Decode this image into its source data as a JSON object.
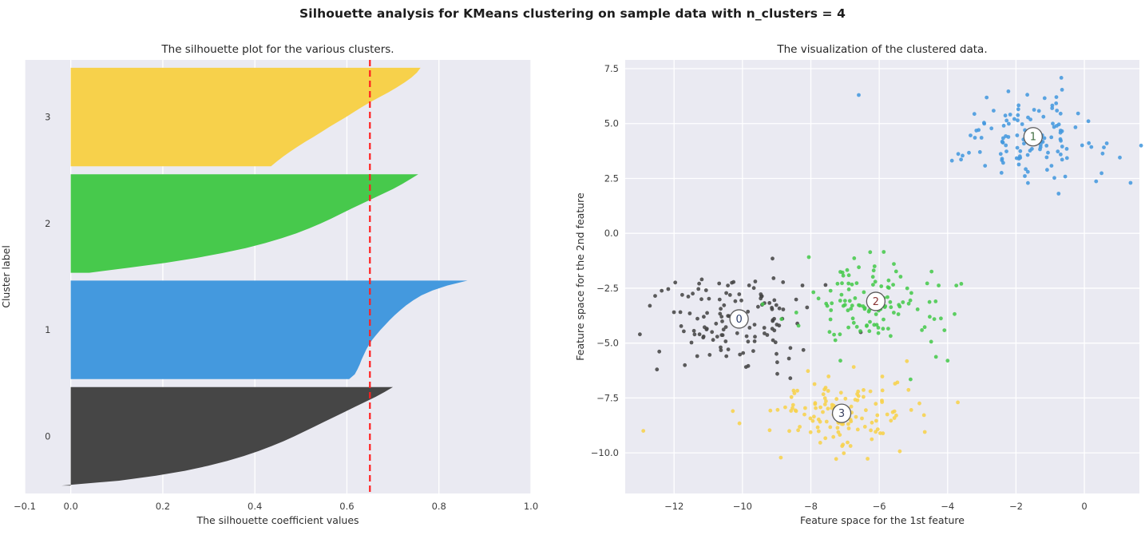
{
  "figure": {
    "title": "Silhouette analysis for KMeans clustering on sample data with n_clusters = 4",
    "background": "#ffffff"
  },
  "style": {
    "plot_background": "#eaeaf2",
    "grid_color": "#ffffff",
    "tick_text_color": "#3d3d3d",
    "title_text_color": "#262626",
    "axis_label_color": "#2e2e2e",
    "avg_line_color": "#ff1f1f",
    "center_marker_fill": "#ffffff",
    "center_marker_stroke": "#5a5a5a"
  },
  "chart_data": [
    {
      "type": "area",
      "name": "silhouette-plot",
      "title": "The silhouette plot for the various clusters.",
      "xlabel": "The silhouette coefficient values",
      "ylabel": "Cluster label",
      "xlim": [
        -0.1,
        1.0
      ],
      "xticks": [
        -0.1,
        0.0,
        0.2,
        0.4,
        0.6,
        0.8,
        1.0
      ],
      "xtick_labels": [
        "−0.1",
        "0.0",
        "0.2",
        "0.4",
        "0.6",
        "0.8",
        "1.0"
      ],
      "grid": true,
      "band_gap_units": 10,
      "silhouette_avg": 0.65,
      "clusters": [
        {
          "label": "0",
          "color": "#464646",
          "n": 125,
          "profile_top_to_bottom": [
            0.7,
            0.682,
            0.662,
            0.64,
            0.618,
            0.596,
            0.574,
            0.552,
            0.53,
            0.508,
            0.486,
            0.462,
            0.436,
            0.408,
            0.376,
            0.34,
            0.298,
            0.248,
            0.185,
            0.105,
            -0.02
          ]
        },
        {
          "label": "1",
          "color": "#4499de",
          "n": 125,
          "profile_top_to_bottom": [
            0.862,
            0.818,
            0.786,
            0.762,
            0.744,
            0.729,
            0.716,
            0.704,
            0.693,
            0.683,
            0.673,
            0.664,
            0.655,
            0.648,
            0.642,
            0.637,
            0.632,
            0.628,
            0.623,
            0.617,
            0.605
          ]
        },
        {
          "label": "2",
          "color": "#47c94c",
          "n": 125,
          "profile_top_to_bottom": [
            0.755,
            0.738,
            0.72,
            0.7,
            0.678,
            0.655,
            0.632,
            0.61,
            0.588,
            0.566,
            0.543,
            0.518,
            0.49,
            0.458,
            0.422,
            0.38,
            0.33,
            0.272,
            0.205,
            0.125,
            0.04
          ]
        },
        {
          "label": "3",
          "color": "#f7d14b",
          "n": 125,
          "profile_top_to_bottom": [
            0.76,
            0.752,
            0.74,
            0.725,
            0.708,
            0.69,
            0.67,
            0.65,
            0.632,
            0.615,
            0.598,
            0.58,
            0.562,
            0.545,
            0.528,
            0.51,
            0.493,
            0.477,
            0.462,
            0.448,
            0.435
          ]
        }
      ]
    },
    {
      "type": "scatter",
      "name": "clustered-data-plot",
      "title": "The visualization of the clustered data.",
      "xlabel": "Feature space for the 1st feature",
      "ylabel": "Feature space for the 2nd feature",
      "xlim": [
        -13.43,
        1.61
      ],
      "ylim": [
        -11.85,
        7.9
      ],
      "xticks": [
        -12,
        -10,
        -8,
        -6,
        -4,
        -2,
        0
      ],
      "xtick_labels": [
        "−12",
        "−10",
        "−8",
        "−6",
        "−4",
        "−2",
        "0"
      ],
      "yticks": [
        7.5,
        5.0,
        2.5,
        0.0,
        -2.5,
        -5.0,
        -7.5,
        -10.0
      ],
      "ytick_labels": [
        "7.5",
        "5.0",
        "2.5",
        "0.0",
        "−2.5",
        "−5.0",
        "−7.5",
        "−10.0"
      ],
      "grid": true,
      "clusters": [
        {
          "label": "0",
          "color": "#464646",
          "n": 125,
          "center": [
            -10.1,
            -3.9
          ],
          "std": 1.1,
          "label_text_color": "#2b3d6b",
          "outliers": [
            [
              -13.0,
              -4.6
            ],
            [
              -12.5,
              -6.2
            ],
            [
              -8.6,
              -6.6
            ]
          ]
        },
        {
          "label": "1",
          "color": "#4499de",
          "n": 125,
          "center": [
            -1.5,
            4.4
          ],
          "std": 1.05,
          "label_text_color": "#3c6b3c",
          "outliers": [
            [
              -6.6,
              6.3
            ],
            [
              1.35,
              2.3
            ]
          ]
        },
        {
          "label": "2",
          "color": "#47c94c",
          "n": 125,
          "center": [
            -6.1,
            -3.1
          ],
          "std": 1.0,
          "label_text_color": "#8a3535",
          "outliers": [
            [
              -3.6,
              -2.3
            ],
            [
              -4.0,
              -5.8
            ]
          ]
        },
        {
          "label": "3",
          "color": "#f7d14b",
          "n": 125,
          "center": [
            -7.1,
            -8.2
          ],
          "std": 1.05,
          "label_text_color": "#39405e",
          "outliers": [
            [
              -3.7,
              -7.7
            ],
            [
              -12.9,
              -9.0
            ]
          ]
        }
      ]
    }
  ]
}
